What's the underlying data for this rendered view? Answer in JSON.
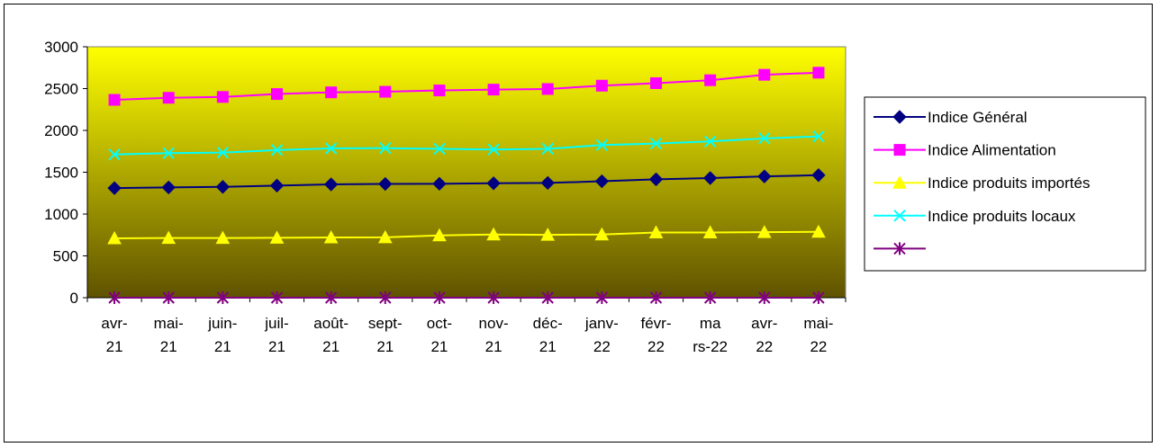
{
  "chart_data": {
    "type": "line",
    "title": "",
    "xlabel": "",
    "ylabel": "",
    "ylim": [
      0,
      3000
    ],
    "yticks": [
      0,
      500,
      1000,
      1500,
      2000,
      2500,
      3000
    ],
    "legend_position": "right",
    "grid": false,
    "categories": [
      [
        "avr-",
        "21"
      ],
      [
        "mai-",
        "21"
      ],
      [
        "juin-",
        "21"
      ],
      [
        "juil-",
        "21"
      ],
      [
        "août-",
        "21"
      ],
      [
        "sept-",
        "21"
      ],
      [
        "oct-",
        "21"
      ],
      [
        "nov-",
        "21"
      ],
      [
        "déc-",
        "21"
      ],
      [
        "janv-",
        "22"
      ],
      [
        "févr-",
        "22"
      ],
      [
        "ma",
        "rs-22"
      ],
      [
        "avr-",
        "22"
      ],
      [
        "mai-",
        "22"
      ]
    ],
    "background_gradient": {
      "top": "#ffff00",
      "bottom": "#5f5200"
    },
    "series": [
      {
        "name": "Indice Général",
        "color": "#000080",
        "marker": "diamond",
        "values": [
          1310,
          1318,
          1325,
          1340,
          1355,
          1360,
          1362,
          1368,
          1372,
          1392,
          1415,
          1430,
          1450,
          1465
        ]
      },
      {
        "name": "Indice Alimentation",
        "color": "#ff00ff",
        "marker": "square",
        "values": [
          2365,
          2390,
          2400,
          2435,
          2455,
          2462,
          2478,
          2488,
          2495,
          2535,
          2565,
          2600,
          2665,
          2690
        ]
      },
      {
        "name": "Indice produits importés",
        "color": "#ffff00",
        "marker": "triangle",
        "values": [
          710,
          714,
          714,
          716,
          720,
          722,
          745,
          756,
          752,
          756,
          780,
          780,
          783,
          787
        ]
      },
      {
        "name": "Indice produits locaux",
        "color": "#00ffff",
        "marker": "x",
        "values": [
          1712,
          1728,
          1735,
          1765,
          1785,
          1788,
          1780,
          1772,
          1780,
          1825,
          1843,
          1868,
          1905,
          1928
        ]
      },
      {
        "name": "",
        "color": "#800080",
        "marker": "star",
        "values": [
          0,
          0,
          0,
          0,
          0,
          0,
          0,
          0,
          0,
          0,
          0,
          0,
          0,
          0
        ]
      }
    ]
  }
}
